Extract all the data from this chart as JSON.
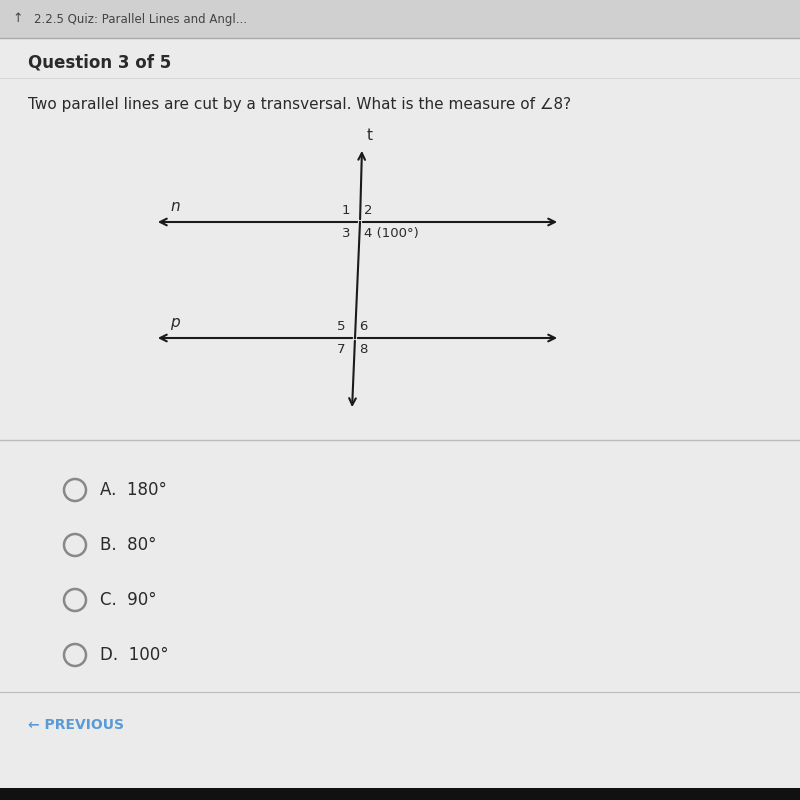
{
  "bg_color": "#c8c8c8",
  "page_bg": "#ebebeb",
  "header_bg": "#d0d0d0",
  "content_bg": "#f2f2f2",
  "header_text": "2.2.5 Quiz: Parallel Lines and Angl...",
  "question_label": "Question 3 of 5",
  "question_text": "Two parallel lines are cut by a transversal. What is the measure of ∠8?",
  "line_n_label": "n",
  "line_p_label": "p",
  "transversal_label": "t",
  "choices": [
    "A.  180°",
    "B.  80°",
    "C.  90°",
    "D.  100°"
  ],
  "previous_text": "← PREVIOUS",
  "text_color": "#2a2a2a",
  "blue_color": "#5b9bd5",
  "circle_color": "#888888",
  "line_color": "#1a1a1a",
  "divider_color": "#bbbbbb",
  "header_text_color": "#444444"
}
